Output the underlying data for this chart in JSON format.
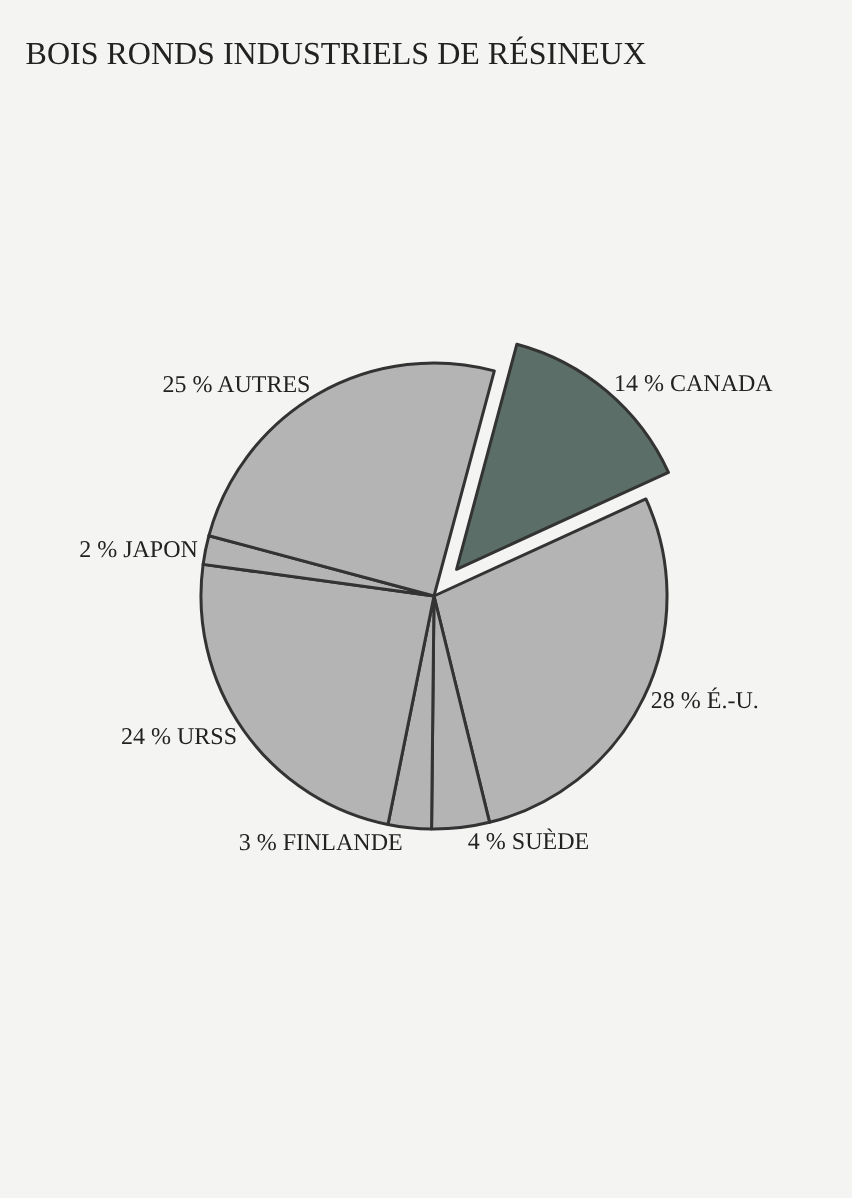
{
  "chart_data": {
    "type": "pie",
    "title": "BOIS RONDS INDUSTRIELS DE RÉSINEUX",
    "categories": [
      "CANADA",
      "É.-U.",
      "SUÈDE",
      "FINLANDE",
      "URSS",
      "JAPON",
      "AUTRES"
    ],
    "values": [
      14,
      28,
      4,
      3,
      24,
      2,
      25
    ],
    "value_labels": [
      "14 %",
      "28 %",
      "4 %",
      "3 %",
      "24 %",
      "2 %",
      "25 %"
    ],
    "colors": [
      "#5b6f68",
      "#b4b4b4",
      "#b4b4b4",
      "#b4b4b4",
      "#b4b4b4",
      "#b4b4b4",
      "#b4b4b4"
    ],
    "legend": false
  }
}
